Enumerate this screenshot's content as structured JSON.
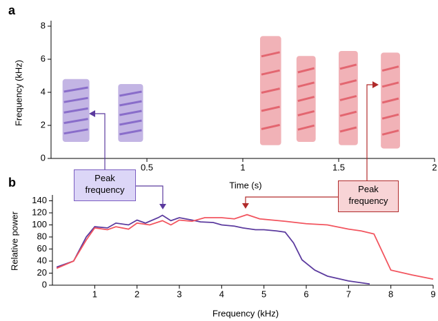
{
  "chart_data": [
    {
      "type": "spectrogram",
      "panel_label": "a",
      "x_label": "Time (s)",
      "y_label": "Frequency (kHz)",
      "xlim": [
        0,
        2
      ],
      "ylim": [
        0,
        8
      ],
      "xticks": [
        0.5,
        1,
        1.5,
        2
      ],
      "yticks": [
        0,
        2,
        4,
        6,
        8
      ],
      "series": [
        {
          "color": "#7b5cc4",
          "syllables": [
            {
              "x": [
                0.06,
                0.2
              ],
              "y": [
                1,
                4.8
              ]
            },
            {
              "x": [
                0.35,
                0.48
              ],
              "y": [
                1,
                4.5
              ]
            }
          ]
        },
        {
          "color": "#e05560",
          "syllables": [
            {
              "x": [
                1.09,
                1.2
              ],
              "y": [
                0.8,
                7.4
              ]
            },
            {
              "x": [
                1.28,
                1.38
              ],
              "y": [
                1,
                6.2
              ]
            },
            {
              "x": [
                1.5,
                1.6
              ],
              "y": [
                0.8,
                6.5
              ]
            },
            {
              "x": [
                1.72,
                1.82
              ],
              "y": [
                0.6,
                6.4
              ]
            }
          ]
        }
      ]
    },
    {
      "type": "line",
      "panel_label": "b",
      "x_label": "Frequency (kHz)",
      "y_label": "Relative power",
      "xlim": [
        0,
        9
      ],
      "ylim": [
        0,
        152
      ],
      "xticks": [
        1,
        2,
        3,
        4,
        5,
        6,
        7,
        8,
        9
      ],
      "yticks": [
        0,
        20,
        40,
        60,
        80,
        100,
        120,
        140
      ],
      "annotations": [
        "Peak frequency",
        "Peak frequency"
      ],
      "series": [
        {
          "color": "#f2545e",
          "x": [
            0.1,
            0.5,
            0.8,
            1,
            1.3,
            1.5,
            1.8,
            2,
            2.3,
            2.6,
            2.8,
            3,
            3.3,
            3.6,
            4,
            4.3,
            4.6,
            4.9,
            5.2,
            5.5,
            6,
            6.5,
            7,
            7.3,
            7.6,
            7.8,
            8,
            8.5,
            9
          ],
          "values": [
            28,
            40,
            75,
            95,
            92,
            97,
            93,
            103,
            100,
            107,
            100,
            108,
            106,
            112,
            112,
            110,
            117,
            110,
            108,
            106,
            102,
            100,
            93,
            90,
            85,
            55,
            25,
            17,
            10
          ]
        },
        {
          "color": "#5b3a9e",
          "x": [
            0.1,
            0.5,
            0.8,
            1,
            1.3,
            1.5,
            1.8,
            2,
            2.2,
            2.5,
            2.6,
            2.8,
            3,
            3.3,
            3.5,
            3.8,
            4,
            4.3,
            4.5,
            4.8,
            5,
            5.3,
            5.5,
            5.7,
            5.9,
            6.2,
            6.5,
            7,
            7.5
          ],
          "values": [
            30,
            40,
            80,
            97,
            95,
            103,
            100,
            108,
            103,
            112,
            116,
            107,
            112,
            108,
            105,
            104,
            100,
            98,
            95,
            92,
            92,
            90,
            88,
            70,
            42,
            25,
            15,
            7,
            2
          ]
        }
      ]
    }
  ]
}
